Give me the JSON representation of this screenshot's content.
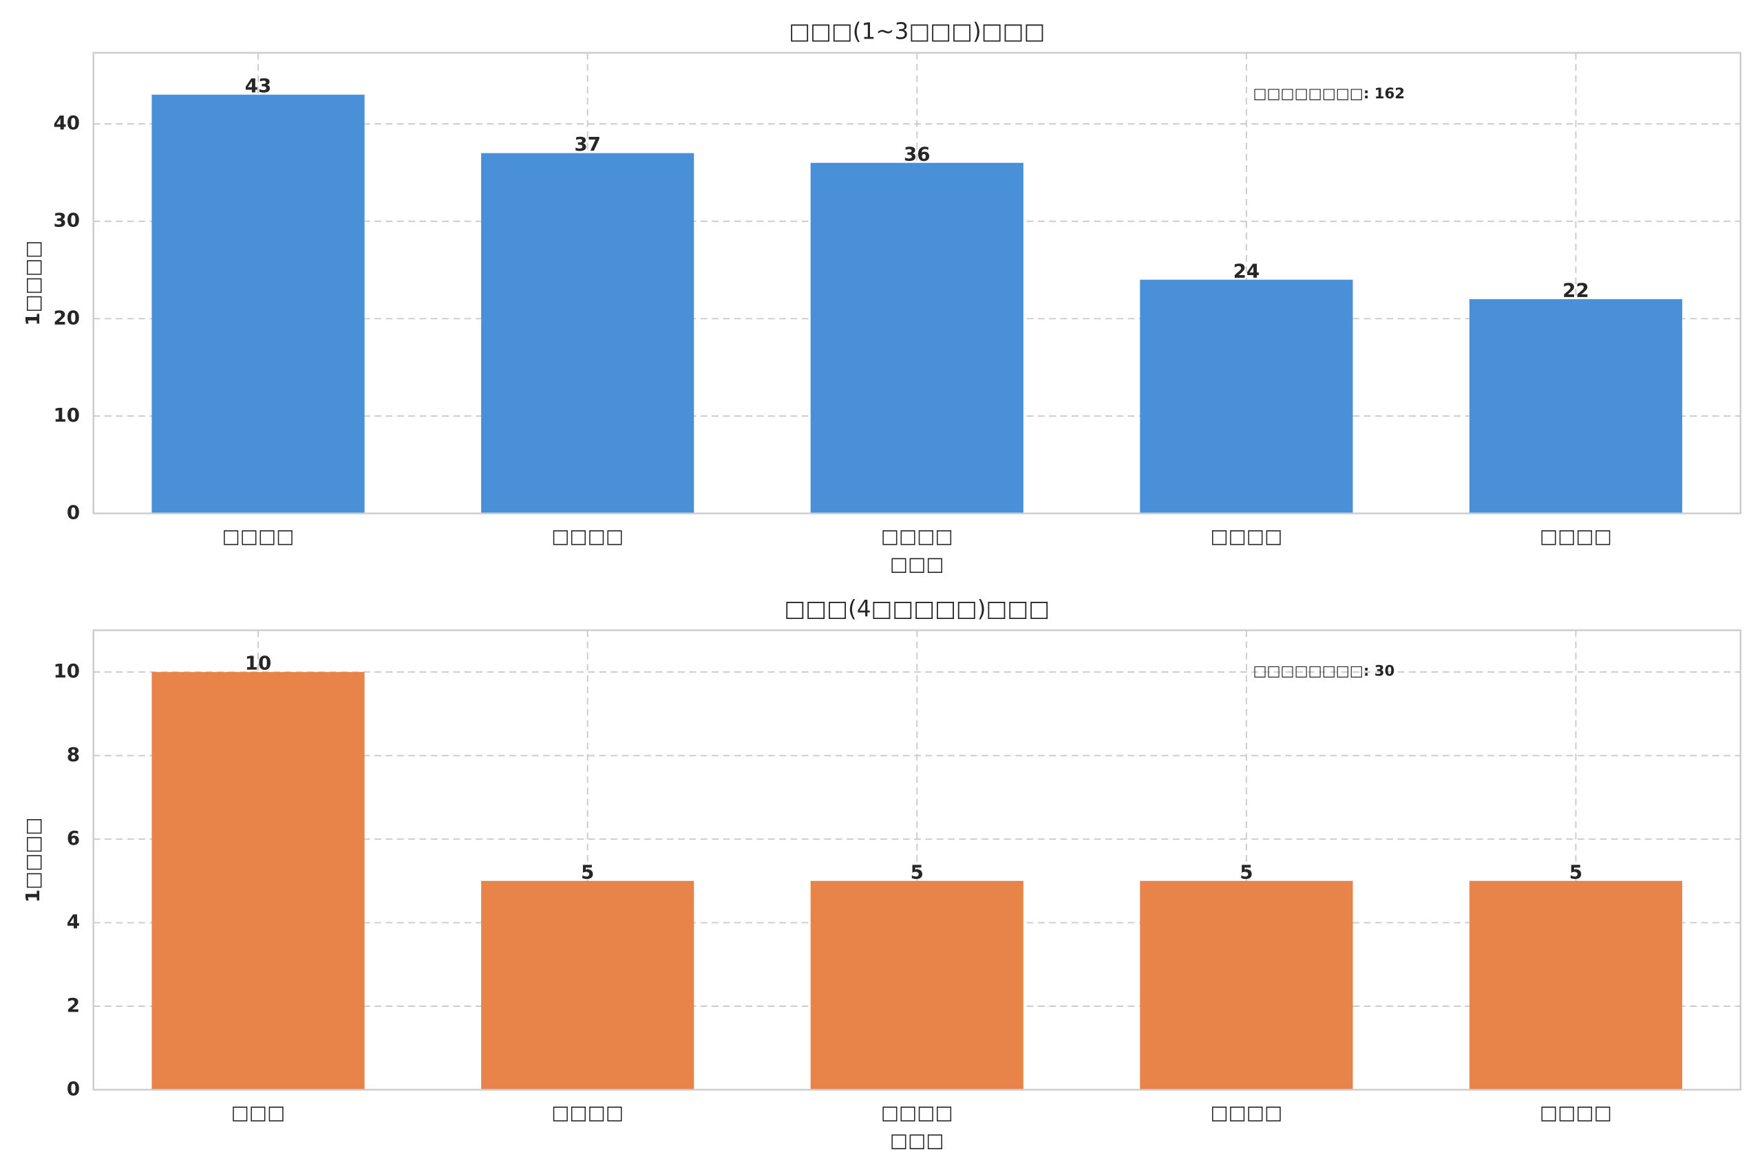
{
  "chart_data": [
    {
      "type": "bar",
      "title": "□□□(1~3□□□)□□□",
      "xlabel": "□□□",
      "ylabel": "1□□□□",
      "categories": [
        "□□□□",
        "□□□□",
        "□□□□",
        "□□□□",
        "□□□□"
      ],
      "values": [
        43,
        37,
        36,
        24,
        22
      ],
      "color": "#4a90d9",
      "ylim": [
        0,
        47.3
      ],
      "yticks": [
        0,
        10,
        20,
        30,
        40
      ],
      "grid": true,
      "annotation": "□□□□□□□□: 162"
    },
    {
      "type": "bar",
      "title": "□□□(4□□□□□)□□□",
      "xlabel": "□□□",
      "ylabel": "1□□□□",
      "categories": [
        "□□□",
        "□□□□",
        "□□□□",
        "□□□□",
        "□□□□"
      ],
      "values": [
        10,
        5,
        5,
        5,
        5
      ],
      "color": "#e8844a",
      "ylim": [
        0,
        11
      ],
      "yticks": [
        0,
        2,
        4,
        6,
        8,
        10
      ],
      "grid": true,
      "annotation": "□□□□□□□□: 30"
    }
  ]
}
